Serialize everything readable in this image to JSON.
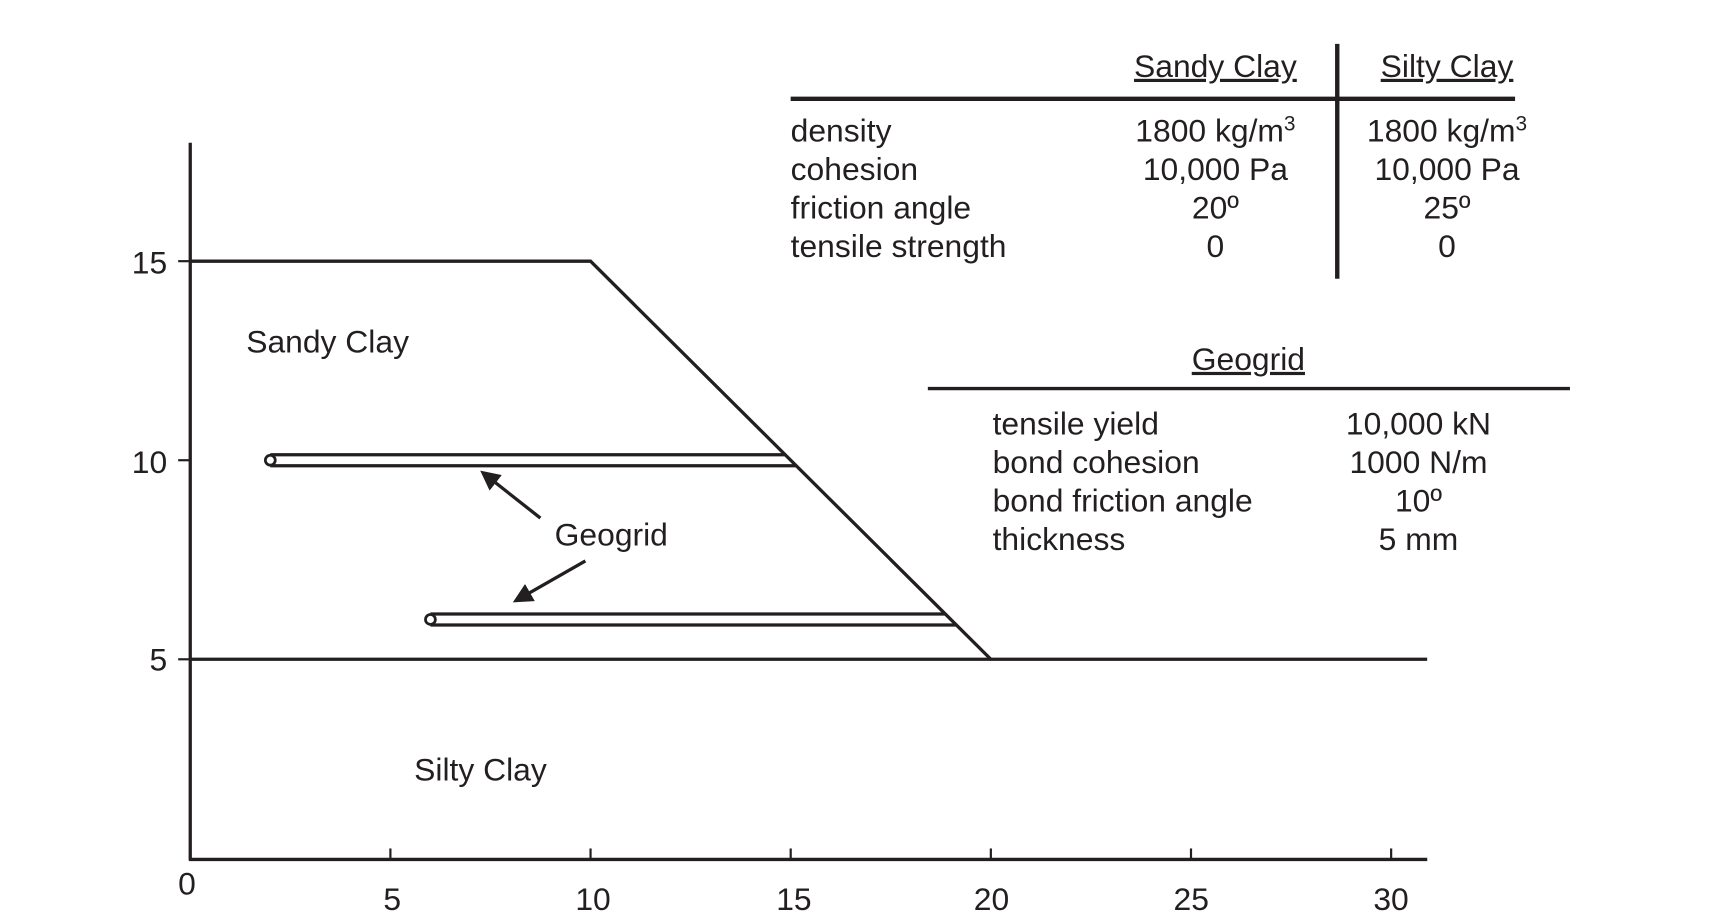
{
  "axes": {
    "x_ticks": [
      "0",
      "5",
      "10",
      "15",
      "20",
      "25",
      "30"
    ],
    "y_ticks": [
      "15",
      "10",
      "5"
    ]
  },
  "geometry": {
    "slope_profile": [
      [
        0,
        15
      ],
      [
        10,
        15
      ],
      [
        20,
        5
      ],
      [
        30.9,
        5
      ]
    ],
    "layer_boundary_y": 5,
    "geogrids": [
      {
        "y": 10,
        "x_start": 2,
        "x_end": 15
      },
      {
        "y": 6,
        "x_start": 6,
        "x_end": 19
      }
    ]
  },
  "labels": {
    "sandy_clay": "Sandy Clay",
    "silty_clay": "Silty Clay",
    "geogrid": "Geogrid"
  },
  "soil_table": {
    "headers": [
      "Sandy Clay",
      "Silty Clay"
    ],
    "rows": [
      {
        "property": "density",
        "sandy": "1800 kg/m",
        "sandy_sup": "3",
        "silty": "1800 kg/m",
        "silty_sup": "3"
      },
      {
        "property": "cohesion",
        "sandy": "10,000 Pa",
        "silty": "10,000 Pa"
      },
      {
        "property": "friction angle",
        "sandy": "20º",
        "silty": "25º"
      },
      {
        "property": "tensile strength",
        "sandy": "0",
        "silty": "0"
      }
    ]
  },
  "geogrid_table": {
    "title": "Geogrid",
    "rows": [
      {
        "property": "tensile yield",
        "value": "10,000 kN"
      },
      {
        "property": "bond cohesion",
        "value": "1000 N/m"
      },
      {
        "property": "bond friction angle",
        "value": "10º"
      },
      {
        "property": "thickness",
        "value": "5 mm"
      }
    ]
  }
}
